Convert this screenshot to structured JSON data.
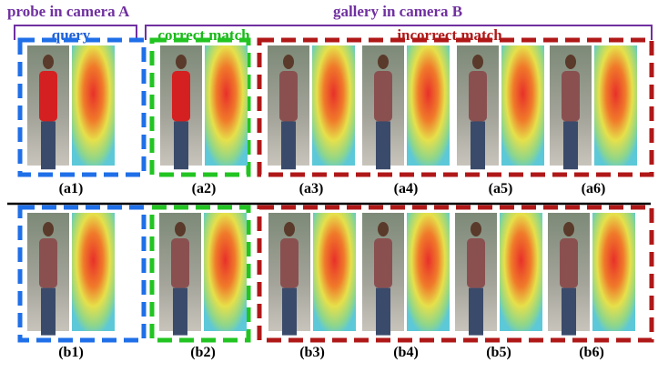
{
  "header": {
    "probe": "probe in camera A",
    "gallery": "gallery in camera B"
  },
  "groups": {
    "query": "query",
    "correct": "correct match",
    "incorrect": "incorrect match"
  },
  "rows": [
    {
      "labels": [
        "(a1)",
        "(a2)",
        "(a3)",
        "(a4)",
        "(a5)",
        "(a6)"
      ]
    },
    {
      "labels": [
        "(b1)",
        "(b2)",
        "(b3)",
        "(b4)",
        "(b5)",
        "(b6)"
      ]
    }
  ]
}
